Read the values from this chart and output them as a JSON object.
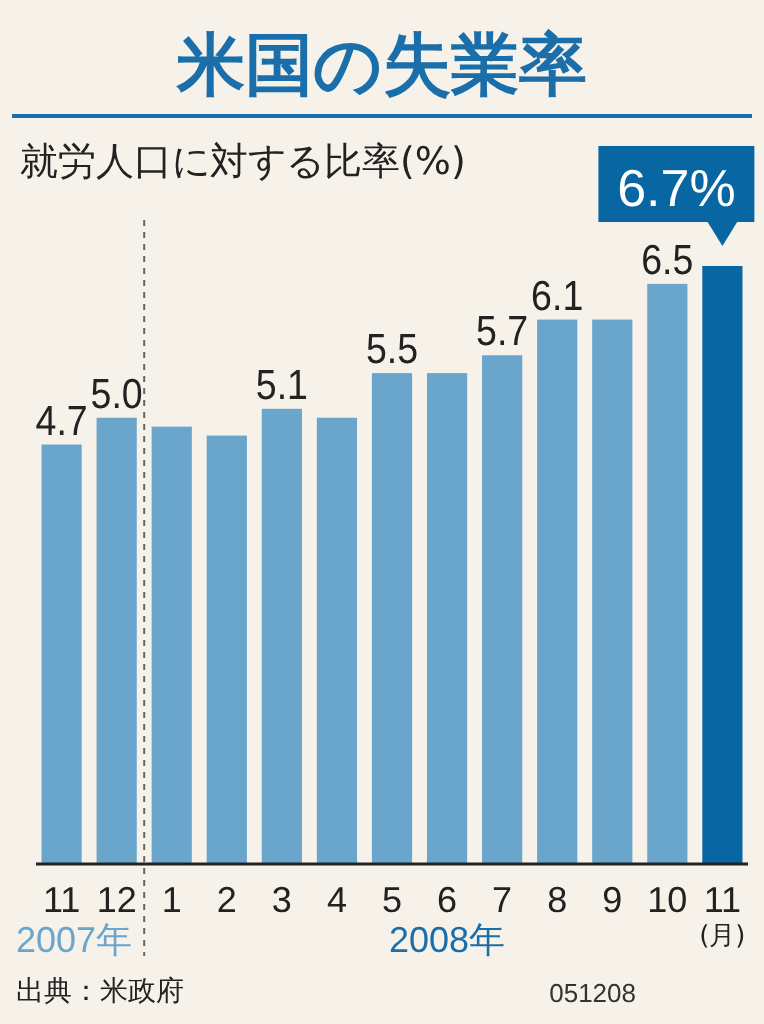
{
  "chart_data": {
    "type": "bar",
    "title": "米国の失業率",
    "subtitle": "就労人口に対する比率(%)",
    "xlabel": "(月)",
    "categories": [
      "11",
      "12",
      "1",
      "2",
      "3",
      "4",
      "5",
      "6",
      "7",
      "8",
      "9",
      "10",
      "11"
    ],
    "values": [
      4.7,
      5.0,
      4.9,
      4.8,
      5.1,
      5.0,
      5.5,
      5.5,
      5.7,
      6.1,
      6.1,
      6.5,
      6.7
    ],
    "value_labels": [
      "4.7",
      "5.0",
      null,
      null,
      "5.1",
      null,
      "5.5",
      null,
      "5.7",
      "6.1",
      null,
      "6.5",
      "6.7%"
    ],
    "colors": [
      "#6aa6cc",
      "#6aa6cc",
      "#6aa6cc",
      "#6aa6cc",
      "#6aa6cc",
      "#6aa6cc",
      "#6aa6cc",
      "#6aa6cc",
      "#6aa6cc",
      "#6aa6cc",
      "#6aa6cc",
      "#6aa6cc",
      "#0866a3"
    ],
    "annotations": [
      "2007年",
      "2008年",
      "出典：米政府",
      "051208"
    ]
  }
}
